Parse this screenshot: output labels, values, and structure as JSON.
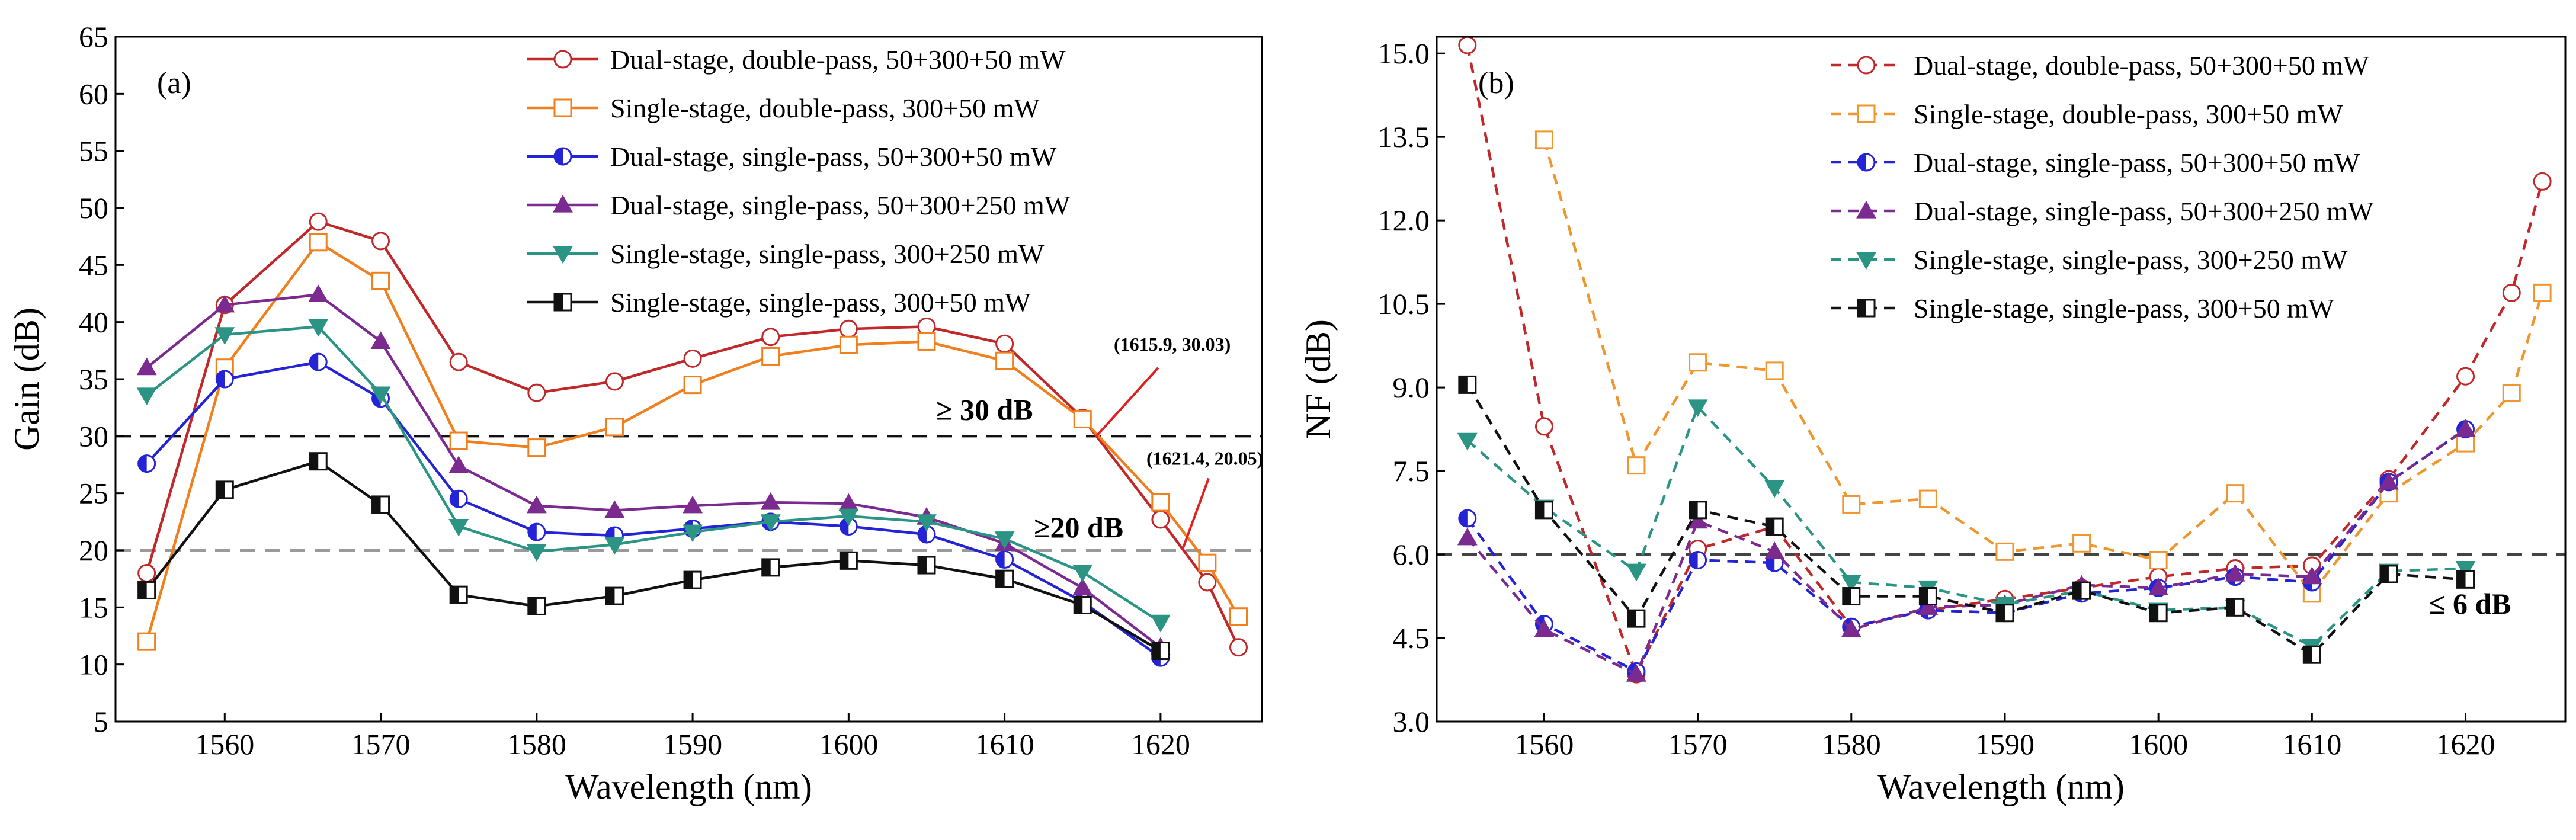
{
  "chart_data": [
    {
      "type": "line",
      "panel_label": "(a)",
      "xlabel": "Wavelength (nm)",
      "ylabel": "Gain (dB)",
      "xlim": [
        1553,
        1626.5
      ],
      "ylim": [
        5,
        65
      ],
      "xticks": [
        1560,
        1570,
        1580,
        1590,
        1600,
        1610,
        1620
      ],
      "yticks": [
        5,
        10,
        15,
        20,
        25,
        30,
        35,
        40,
        45,
        50,
        55,
        60,
        65
      ],
      "legend_position": "top-right",
      "series": [
        {
          "name": "Dual-stage, double-pass, 50+300+50 mW",
          "color": "#c0282a",
          "marker": "circle-open",
          "x": [
            1555,
            1560,
            1566,
            1570,
            1575,
            1580,
            1585,
            1590,
            1595,
            1600,
            1605,
            1610,
            1615,
            1620,
            1623,
            1625
          ],
          "y": [
            18,
            41.5,
            48.8,
            47.1,
            36.5,
            33.8,
            34.8,
            36.8,
            38.7,
            39.4,
            39.6,
            38.1,
            31.6,
            22.7,
            17.2,
            11.5
          ]
        },
        {
          "name": "Single-stage, double-pass, 300+50 mW",
          "color": "#f07f1d",
          "marker": "square-open",
          "x": [
            1555,
            1560,
            1566,
            1570,
            1575,
            1580,
            1585,
            1590,
            1595,
            1600,
            1605,
            1610,
            1615,
            1620,
            1623,
            1625
          ],
          "y": [
            12,
            36,
            47,
            43.6,
            29.6,
            29,
            30.8,
            34.5,
            37,
            38,
            38.3,
            36.6,
            31.5,
            24.2,
            18.9,
            14.2
          ]
        },
        {
          "name": "Dual-stage, single-pass, 50+300+50 mW",
          "color": "#2424d6",
          "marker": "circle-half",
          "x": [
            1555,
            1560,
            1566,
            1570,
            1575,
            1580,
            1585,
            1590,
            1595,
            1600,
            1605,
            1610,
            1615,
            1620
          ],
          "y": [
            27.6,
            35,
            36.5,
            33.3,
            24.5,
            21.6,
            21.3,
            21.9,
            22.5,
            22.1,
            21.4,
            19.2,
            15.5,
            10.6
          ]
        },
        {
          "name": "Dual-stage, single-pass, 50+300+250 mW",
          "color": "#7b2a90",
          "marker": "triangle-up",
          "x": [
            1555,
            1560,
            1566,
            1570,
            1575,
            1580,
            1585,
            1590,
            1595,
            1600,
            1605,
            1610,
            1615,
            1620
          ],
          "y": [
            36,
            41.5,
            42.4,
            38.3,
            27.4,
            23.9,
            23.5,
            23.9,
            24.2,
            24.1,
            22.9,
            20.6,
            16.7,
            11.5
          ]
        },
        {
          "name": "Single-stage, single-pass, 300+250 mW",
          "color": "#2b9484",
          "marker": "triangle-down",
          "x": [
            1555,
            1560,
            1566,
            1570,
            1575,
            1580,
            1585,
            1590,
            1595,
            1600,
            1605,
            1610,
            1615,
            1620
          ],
          "y": [
            33.6,
            38.9,
            39.6,
            33.7,
            22.1,
            19.9,
            20.5,
            21.6,
            22.5,
            23,
            22.5,
            21,
            18.1,
            13.7
          ]
        },
        {
          "name": "Single-stage, single-pass, 300+50 mW",
          "color": "#111111",
          "marker": "square-half",
          "x": [
            1555,
            1560,
            1566,
            1570,
            1575,
            1580,
            1585,
            1590,
            1595,
            1600,
            1605,
            1610,
            1615,
            1620
          ],
          "y": [
            16.5,
            25.3,
            27.8,
            24,
            16.1,
            15.1,
            16,
            17.4,
            18.5,
            19.1,
            18.7,
            17.5,
            15.2,
            11.2
          ]
        }
      ],
      "reference_lines": [
        {
          "y": 30,
          "label": "≥ 30 dB",
          "color": "#111111"
        },
        {
          "y": 20,
          "label": "≥20 dB",
          "color": "#9a9a9a"
        }
      ],
      "annotations": [
        {
          "text": "(1615.9, 30.03)",
          "x": 1615.9,
          "y": 30.03
        },
        {
          "text": "(1621.4, 20.05)",
          "x": 1621.4,
          "y": 20.05
        }
      ]
    },
    {
      "type": "line",
      "panel_label": "(b)",
      "xlabel": "Wavelength (nm)",
      "ylabel": "NF (dB)",
      "xlim": [
        1553,
        1626.5
      ],
      "ylim": [
        3.0,
        15.3
      ],
      "xticks": [
        1560,
        1570,
        1580,
        1590,
        1600,
        1610,
        1620
      ],
      "yticks": [
        "3.0",
        "4.5",
        "6.0",
        "7.5",
        "9.0",
        "10.5",
        "12.0",
        "13.5",
        "15.0"
      ],
      "legend_position": "top-right",
      "series": [
        {
          "name": "Dual-stage, double-pass, 50+300+50 mW",
          "color": "#c0282a",
          "marker": "circle-open",
          "x": [
            1555,
            1560,
            1566,
            1570,
            1575,
            1580,
            1585,
            1590,
            1595,
            1600,
            1605,
            1610,
            1615,
            1620,
            1623,
            1625
          ],
          "y": [
            15.15,
            8.3,
            3.85,
            6.1,
            6.5,
            4.7,
            5.0,
            5.2,
            5.4,
            5.6,
            5.75,
            5.8,
            7.35,
            9.2,
            10.7,
            12.7
          ]
        },
        {
          "name": "Single-stage, double-pass, 300+50 mW",
          "color": "#f0962e",
          "marker": "square-open",
          "x": [
            1560,
            1566,
            1570,
            1575,
            1580,
            1585,
            1590,
            1595,
            1600,
            1605,
            1610,
            1615,
            1620,
            1623,
            1625
          ],
          "y": [
            13.45,
            7.6,
            9.45,
            9.3,
            6.9,
            7.0,
            6.05,
            6.2,
            5.9,
            7.1,
            5.3,
            7.1,
            8.0,
            8.9,
            10.7
          ]
        },
        {
          "name": "Dual-stage, single-pass, 50+300+50 mW",
          "color": "#2424d6",
          "marker": "circle-half",
          "x": [
            1555,
            1560,
            1566,
            1570,
            1575,
            1580,
            1585,
            1590,
            1595,
            1600,
            1605,
            1610,
            1615,
            1620
          ],
          "y": [
            6.65,
            4.75,
            3.9,
            5.9,
            5.85,
            4.7,
            5.0,
            4.95,
            5.3,
            5.4,
            5.6,
            5.5,
            7.3,
            8.25
          ]
        },
        {
          "name": "Dual-stage, single-pass, 50+300+250 mW",
          "color": "#7b2a90",
          "marker": "triangle-up",
          "x": [
            1555,
            1560,
            1566,
            1570,
            1575,
            1580,
            1585,
            1590,
            1595,
            1600,
            1605,
            1610,
            1615,
            1620
          ],
          "y": [
            6.3,
            4.65,
            3.85,
            6.6,
            6.05,
            4.65,
            5.05,
            5.1,
            5.45,
            5.4,
            5.65,
            5.6,
            7.3,
            8.25
          ]
        },
        {
          "name": "Single-stage, single-pass, 300+250 mW",
          "color": "#2b9484",
          "marker": "triangle-down",
          "x": [
            1555,
            1560,
            1566,
            1570,
            1575,
            1580,
            1585,
            1590,
            1595,
            1600,
            1605,
            1610,
            1615,
            1620
          ],
          "y": [
            8.05,
            6.85,
            5.7,
            8.65,
            7.2,
            5.5,
            5.4,
            5.1,
            5.35,
            5.0,
            5.05,
            4.35,
            5.7,
            5.75
          ]
        },
        {
          "name": "Single-stage, single-pass, 300+50 mW",
          "color": "#111111",
          "marker": "square-half",
          "x": [
            1555,
            1560,
            1566,
            1570,
            1575,
            1580,
            1585,
            1590,
            1595,
            1600,
            1605,
            1610,
            1615,
            1620
          ],
          "y": [
            9.05,
            6.8,
            4.85,
            6.8,
            6.5,
            5.25,
            5.25,
            4.95,
            5.35,
            4.95,
            5.05,
            4.2,
            5.65,
            5.55
          ]
        }
      ],
      "reference_lines": [
        {
          "y": 6.0,
          "label": "≤ 6 dB",
          "color": "#444444"
        }
      ]
    }
  ]
}
